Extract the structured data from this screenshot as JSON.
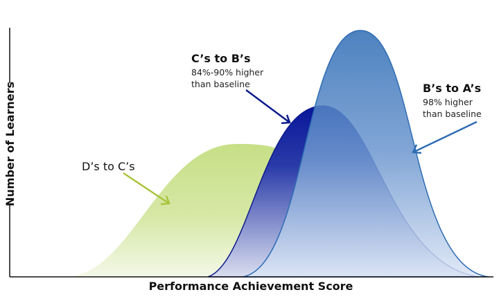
{
  "axes": {
    "y_label": "Number of Learners",
    "x_label": "Performance Achievement Score"
  },
  "annotations": [
    {
      "title": "D’s to C’s",
      "lines": []
    },
    {
      "title": "C’s to B’s",
      "lines": [
        "84%-90% higher",
        "than baseline"
      ]
    },
    {
      "title": "B’s to A’s",
      "lines": [
        "98% higher",
        "than baseline"
      ]
    }
  ]
}
